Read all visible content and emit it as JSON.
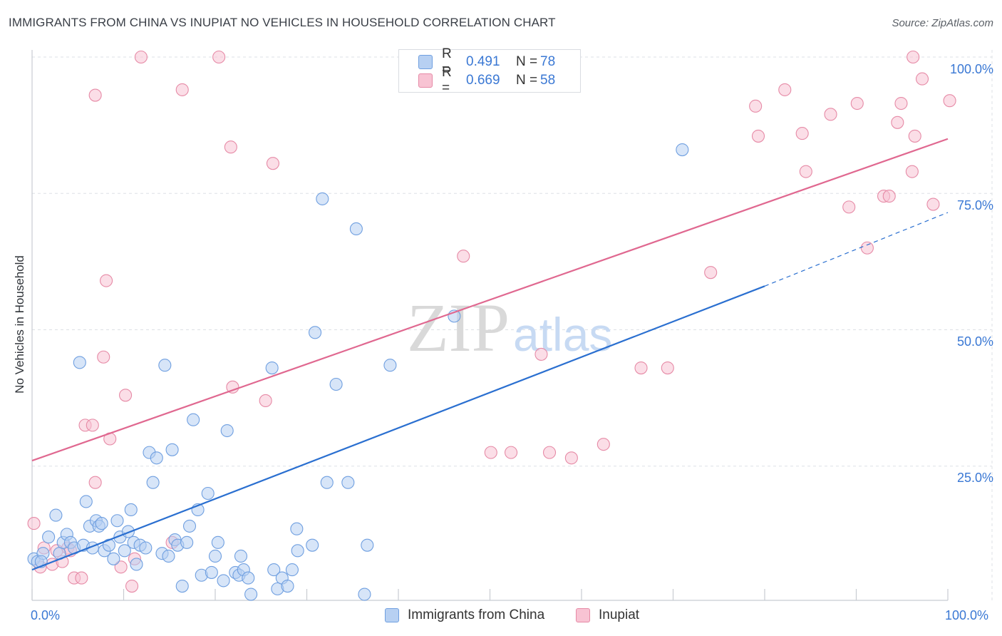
{
  "header": {
    "title": "IMMIGRANTS FROM CHINA VS INUPIAT NO VEHICLES IN HOUSEHOLD CORRELATION CHART",
    "source": "Source: ZipAtlas.com"
  },
  "legend_top": [
    {
      "r_label": "R =",
      "r_value": "0.491",
      "n_label": "N =",
      "n_value": "78"
    },
    {
      "r_label": "R =",
      "r_value": "0.669",
      "n_label": "N =",
      "n_value": "58"
    }
  ],
  "legend_bottom": [
    "Immigrants from China",
    "Inupiat"
  ],
  "watermark": {
    "zip": "ZIP",
    "atlas": "atlas"
  },
  "axes": {
    "ylabel": "No Vehicles in Household",
    "y_ticks": [
      "100.0%",
      "75.0%",
      "50.0%",
      "25.0%"
    ],
    "x_ticks": [
      "0.0%",
      "100.0%"
    ]
  },
  "colors": {
    "blue_fill": "#b7d0f2",
    "blue_stroke": "#6f9fe0",
    "blue_line": "#2a6fd0",
    "pink_fill": "#f8c3d3",
    "pink_stroke": "#e68aa6",
    "pink_line": "#e06890",
    "tick_text": "#3a78d4",
    "grid": "#dde0e5"
  },
  "chart_data": {
    "type": "scatter",
    "xlim": [
      0,
      100
    ],
    "ylim": [
      0,
      102
    ],
    "grid": true,
    "legend_position": "top-center",
    "series": [
      {
        "name": "Immigrants from China",
        "color": "#6f9fe0",
        "trend": {
          "x0": 0,
          "y0": 6,
          "x1": 80,
          "y1": 58,
          "dash_to": [
            100,
            71.5
          ]
        },
        "points": [
          [
            0.2,
            8
          ],
          [
            0.6,
            7.5
          ],
          [
            1.2,
            9
          ],
          [
            1.8,
            12
          ],
          [
            2.6,
            16
          ],
          [
            3,
            9
          ],
          [
            3.4,
            11
          ],
          [
            3.8,
            12.5
          ],
          [
            4.2,
            11
          ],
          [
            4.6,
            10
          ],
          [
            5.2,
            44
          ],
          [
            5.6,
            10.5
          ],
          [
            5.9,
            18.5
          ],
          [
            6.3,
            14
          ],
          [
            6.6,
            10
          ],
          [
            7,
            15
          ],
          [
            7.3,
            14
          ],
          [
            7.6,
            14.5
          ],
          [
            7.9,
            9.5
          ],
          [
            8.4,
            10.5
          ],
          [
            8.9,
            8
          ],
          [
            9.3,
            15
          ],
          [
            9.6,
            12
          ],
          [
            10.1,
            9.5
          ],
          [
            10.5,
            13
          ],
          [
            10.8,
            17
          ],
          [
            11.1,
            11
          ],
          [
            11.4,
            7
          ],
          [
            11.8,
            10.5
          ],
          [
            12.4,
            10
          ],
          [
            12.8,
            27.5
          ],
          [
            13.2,
            22
          ],
          [
            13.6,
            26.5
          ],
          [
            14.2,
            9
          ],
          [
            14.5,
            43.5
          ],
          [
            14.9,
            8.5
          ],
          [
            15.3,
            28
          ],
          [
            15.6,
            11.5
          ],
          [
            15.9,
            10.5
          ],
          [
            16.4,
            3
          ],
          [
            16.9,
            11
          ],
          [
            17.2,
            14
          ],
          [
            17.6,
            33.5
          ],
          [
            18.1,
            17
          ],
          [
            18.5,
            5
          ],
          [
            19.2,
            20
          ],
          [
            19.6,
            5.5
          ],
          [
            20,
            8.5
          ],
          [
            20.3,
            11
          ],
          [
            20.9,
            4
          ],
          [
            21.3,
            31.5
          ],
          [
            22.2,
            5.5
          ],
          [
            22.6,
            5
          ],
          [
            22.8,
            8.5
          ],
          [
            23.1,
            6
          ],
          [
            23.6,
            4.5
          ],
          [
            23.9,
            1.5
          ],
          [
            26.2,
            43
          ],
          [
            26.4,
            6
          ],
          [
            26.8,
            2.5
          ],
          [
            27.3,
            4.5
          ],
          [
            27.9,
            3
          ],
          [
            28.4,
            6
          ],
          [
            28.9,
            13.5
          ],
          [
            29,
            9.5
          ],
          [
            30.6,
            10.5
          ],
          [
            30.9,
            49.5
          ],
          [
            31.7,
            74
          ],
          [
            32.2,
            22
          ],
          [
            33.2,
            40
          ],
          [
            34.5,
            22
          ],
          [
            35.4,
            68.5
          ],
          [
            36.3,
            1.5
          ],
          [
            36.6,
            10.5
          ],
          [
            39.1,
            43.5
          ],
          [
            46.1,
            52.5
          ],
          [
            71,
            83
          ],
          [
            1,
            7.5
          ]
        ]
      },
      {
        "name": "Inupiat",
        "color": "#e68aa6",
        "trend": {
          "x0": 0,
          "y0": 26,
          "x1": 100,
          "y1": 85
        },
        "points": [
          [
            0.2,
            14.5
          ],
          [
            0.9,
            6.5
          ],
          [
            1.3,
            10
          ],
          [
            2.2,
            7
          ],
          [
            2.7,
            9.5
          ],
          [
            3.3,
            7.5
          ],
          [
            3.9,
            10
          ],
          [
            4.2,
            9.5
          ],
          [
            4.6,
            4.5
          ],
          [
            5.4,
            4.5
          ],
          [
            5.8,
            32.5
          ],
          [
            6.6,
            32.5
          ],
          [
            6.9,
            22
          ],
          [
            6.9,
            93
          ],
          [
            7.8,
            45
          ],
          [
            8.1,
            59
          ],
          [
            8.5,
            30
          ],
          [
            9.7,
            6.5
          ],
          [
            10.2,
            38
          ],
          [
            10.9,
            3
          ],
          [
            11.2,
            8
          ],
          [
            11.9,
            100
          ],
          [
            15.3,
            11
          ],
          [
            16.4,
            94
          ],
          [
            20.4,
            100
          ],
          [
            21.7,
            83.5
          ],
          [
            21.9,
            39.5
          ],
          [
            25.5,
            37
          ],
          [
            26.3,
            80.5
          ],
          [
            47.1,
            63.5
          ],
          [
            50.1,
            27.5
          ],
          [
            52.3,
            27.5
          ],
          [
            55.6,
            45.5
          ],
          [
            56.5,
            27.5
          ],
          [
            58.9,
            26.5
          ],
          [
            62.4,
            29
          ],
          [
            66.5,
            43
          ],
          [
            69.4,
            43
          ],
          [
            74.1,
            60.5
          ],
          [
            79,
            91
          ],
          [
            79.3,
            85.5
          ],
          [
            82.2,
            94
          ],
          [
            84.1,
            86
          ],
          [
            84.5,
            79
          ],
          [
            87.2,
            89.5
          ],
          [
            89.2,
            72.5
          ],
          [
            90.1,
            91.5
          ],
          [
            91.2,
            65
          ],
          [
            93,
            74.5
          ],
          [
            93.6,
            74.5
          ],
          [
            94.5,
            88
          ],
          [
            94.9,
            91.5
          ],
          [
            96.1,
            79
          ],
          [
            96.4,
            85.5
          ],
          [
            96.2,
            100
          ],
          [
            97.2,
            96
          ],
          [
            98.4,
            73
          ],
          [
            100.2,
            92
          ]
        ]
      }
    ]
  }
}
